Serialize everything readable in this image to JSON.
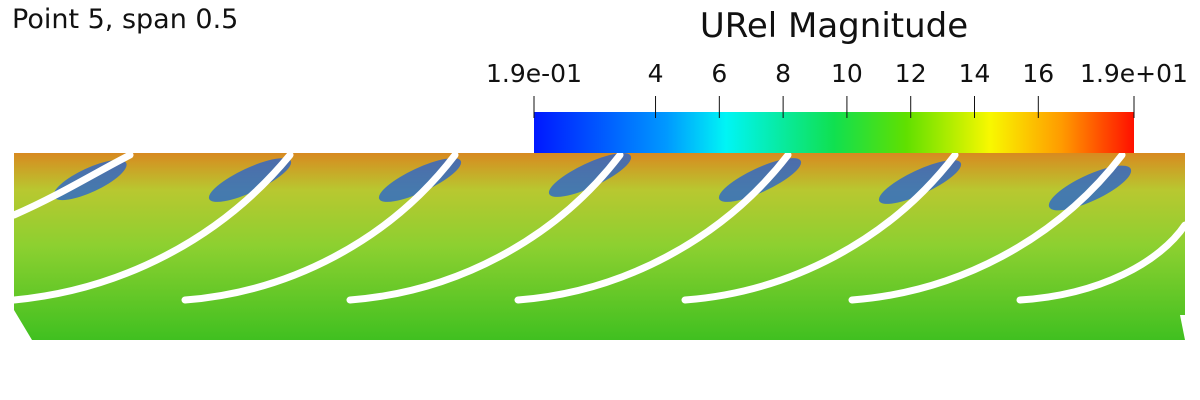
{
  "label": "Point 5, span 0.5",
  "colorbar": {
    "title": "URel Magnitude",
    "range": [
      0.19,
      19
    ],
    "ticks": [
      {
        "value": 0.19,
        "label": "1.9e-01"
      },
      4,
      6,
      8,
      10,
      12,
      14,
      16,
      {
        "value": 19,
        "label": "1.9e+01"
      }
    ]
  }
}
